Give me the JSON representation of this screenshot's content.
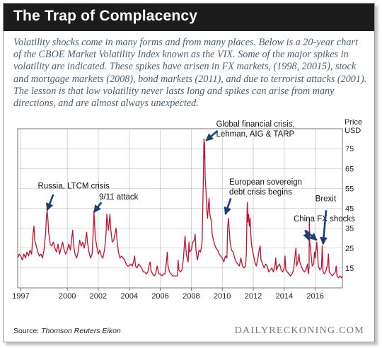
{
  "header": {
    "title": "The Trap of Complacency"
  },
  "intro": "Volatility shocks come in many forms and from many places. Below is a 20-year chart of the CBOE Market Volatility Index known as the VIX. Some of the major spikes in volatility are indicated. These spikes have arisen in FX markets, (1998, 20015), stock and mortgage markets (2008), bond markets (2011), and due to terrorist attacks (2001). The lesson is that low volatility never lasts long and spikes can arise from many directions, and are almost always unexpected.",
  "footer": {
    "source_label": "Source: ",
    "source_name": "Thomson Reuters Eikon",
    "brand": "DAILYRECKONING.COM"
  },
  "colors": {
    "line": "#c8102e",
    "arrow": "#1f3f73",
    "title_bg": "#1c1c1c"
  },
  "chart_data": {
    "type": "line",
    "ylabel_line1": "Price",
    "ylabel_line2": "USD",
    "ylim": [
      5,
      85
    ],
    "yticks": [
      15,
      25,
      35,
      45,
      55,
      65,
      75
    ],
    "xlim": [
      1996.8,
      2017.75
    ],
    "xticks": [
      {
        "x": 1997,
        "label": "1997"
      },
      {
        "x": 2000,
        "label": "2000"
      },
      {
        "x": 2002,
        "label": "2002"
      },
      {
        "x": 2004,
        "label": "2004"
      },
      {
        "x": 2006,
        "label": "2006"
      },
      {
        "x": 2008,
        "label": "2008"
      },
      {
        "x": 2010,
        "label": "2010"
      },
      {
        "x": 2012,
        "label": "2012"
      },
      {
        "x": 2014,
        "label": "2014"
      },
      {
        "x": 2016,
        "label": "2016"
      }
    ],
    "grid": true,
    "series": [
      {
        "values": [
          [
            1996.8,
            20
          ],
          [
            1996.9,
            22
          ],
          [
            1997.0,
            21
          ],
          [
            1997.1,
            19
          ],
          [
            1997.2,
            22
          ],
          [
            1997.3,
            20
          ],
          [
            1997.4,
            23
          ],
          [
            1997.5,
            21
          ],
          [
            1997.6,
            24
          ],
          [
            1997.7,
            22
          ],
          [
            1997.8,
            33
          ],
          [
            1997.85,
            36
          ],
          [
            1997.9,
            29
          ],
          [
            1998.0,
            26
          ],
          [
            1998.1,
            23
          ],
          [
            1998.2,
            21
          ],
          [
            1998.3,
            22
          ],
          [
            1998.4,
            20
          ],
          [
            1998.5,
            24
          ],
          [
            1998.6,
            32
          ],
          [
            1998.65,
            40
          ],
          [
            1998.7,
            44
          ],
          [
            1998.75,
            40
          ],
          [
            1998.8,
            33
          ],
          [
            1998.9,
            27
          ],
          [
            1999.0,
            26
          ],
          [
            1999.1,
            28
          ],
          [
            1999.2,
            25
          ],
          [
            1999.3,
            23
          ],
          [
            1999.4,
            27
          ],
          [
            1999.5,
            22
          ],
          [
            1999.6,
            25
          ],
          [
            1999.7,
            28
          ],
          [
            1999.8,
            24
          ],
          [
            1999.9,
            22
          ],
          [
            2000.0,
            24
          ],
          [
            2000.1,
            27
          ],
          [
            2000.2,
            24
          ],
          [
            2000.3,
            31
          ],
          [
            2000.35,
            34
          ],
          [
            2000.4,
            27
          ],
          [
            2000.5,
            22
          ],
          [
            2000.6,
            20
          ],
          [
            2000.7,
            23
          ],
          [
            2000.8,
            29
          ],
          [
            2000.9,
            26
          ],
          [
            2001.0,
            28
          ],
          [
            2001.1,
            25
          ],
          [
            2001.2,
            30
          ],
          [
            2001.25,
            33
          ],
          [
            2001.3,
            28
          ],
          [
            2001.4,
            23
          ],
          [
            2001.5,
            20
          ],
          [
            2001.6,
            22
          ],
          [
            2001.7,
            38
          ],
          [
            2001.72,
            43
          ],
          [
            2001.75,
            39
          ],
          [
            2001.8,
            31
          ],
          [
            2001.9,
            26
          ],
          [
            2002.0,
            22
          ],
          [
            2002.1,
            24
          ],
          [
            2002.2,
            21
          ],
          [
            2002.3,
            20
          ],
          [
            2002.4,
            24
          ],
          [
            2002.5,
            32
          ],
          [
            2002.55,
            42
          ],
          [
            2002.6,
            38
          ],
          [
            2002.65,
            34
          ],
          [
            2002.7,
            38
          ],
          [
            2002.75,
            42
          ],
          [
            2002.8,
            35
          ],
          [
            2002.9,
            28
          ],
          [
            2003.0,
            29
          ],
          [
            2003.1,
            33
          ],
          [
            2003.15,
            35
          ],
          [
            2003.2,
            30
          ],
          [
            2003.3,
            23
          ],
          [
            2003.4,
            20
          ],
          [
            2003.5,
            21
          ],
          [
            2003.6,
            20
          ],
          [
            2003.7,
            19
          ],
          [
            2003.8,
            17
          ],
          [
            2003.9,
            16
          ],
          [
            2004.0,
            16
          ],
          [
            2004.1,
            17
          ],
          [
            2004.2,
            16
          ],
          [
            2004.3,
            19
          ],
          [
            2004.35,
            21
          ],
          [
            2004.4,
            16
          ],
          [
            2004.5,
            15
          ],
          [
            2004.6,
            17
          ],
          [
            2004.7,
            16
          ],
          [
            2004.8,
            15
          ],
          [
            2004.9,
            13
          ],
          [
            2005.0,
            13
          ],
          [
            2005.1,
            12
          ],
          [
            2005.2,
            13
          ],
          [
            2005.3,
            17
          ],
          [
            2005.35,
            18
          ],
          [
            2005.4,
            14
          ],
          [
            2005.5,
            12
          ],
          [
            2005.6,
            11
          ],
          [
            2005.7,
            12
          ],
          [
            2005.8,
            16
          ],
          [
            2005.9,
            12
          ],
          [
            2006.0,
            12
          ],
          [
            2006.1,
            11
          ],
          [
            2006.2,
            12
          ],
          [
            2006.3,
            12
          ],
          [
            2006.4,
            18
          ],
          [
            2006.45,
            23
          ],
          [
            2006.5,
            16
          ],
          [
            2006.6,
            13
          ],
          [
            2006.7,
            12
          ],
          [
            2006.8,
            11
          ],
          [
            2006.9,
            11
          ],
          [
            2007.0,
            11
          ],
          [
            2007.1,
            11
          ],
          [
            2007.15,
            19
          ],
          [
            2007.2,
            14
          ],
          [
            2007.3,
            13
          ],
          [
            2007.4,
            14
          ],
          [
            2007.5,
            20
          ],
          [
            2007.55,
            26
          ],
          [
            2007.6,
            31
          ],
          [
            2007.65,
            25
          ],
          [
            2007.7,
            21
          ],
          [
            2007.8,
            18
          ],
          [
            2007.85,
            28
          ],
          [
            2007.9,
            23
          ],
          [
            2008.0,
            24
          ],
          [
            2008.1,
            28
          ],
          [
            2008.2,
            29
          ],
          [
            2008.25,
            32
          ],
          [
            2008.3,
            24
          ],
          [
            2008.4,
            19
          ],
          [
            2008.5,
            24
          ],
          [
            2008.6,
            23
          ],
          [
            2008.7,
            28
          ],
          [
            2008.72,
            38
          ],
          [
            2008.75,
            48
          ],
          [
            2008.78,
            60
          ],
          [
            2008.8,
            72
          ],
          [
            2008.82,
            80
          ],
          [
            2008.84,
            70
          ],
          [
            2008.86,
            78
          ],
          [
            2008.88,
            68
          ],
          [
            2008.9,
            60
          ],
          [
            2008.95,
            54
          ],
          [
            2009.0,
            44
          ],
          [
            2009.05,
            40
          ],
          [
            2009.1,
            46
          ],
          [
            2009.15,
            50
          ],
          [
            2009.2,
            42
          ],
          [
            2009.3,
            38
          ],
          [
            2009.35,
            32
          ],
          [
            2009.4,
            30
          ],
          [
            2009.5,
            27
          ],
          [
            2009.6,
            25
          ],
          [
            2009.7,
            24
          ],
          [
            2009.8,
            22
          ],
          [
            2009.9,
            21
          ],
          [
            2010.0,
            20
          ],
          [
            2010.1,
            18
          ],
          [
            2010.2,
            21
          ],
          [
            2010.3,
            20
          ],
          [
            2010.35,
            36
          ],
          [
            2010.4,
            40
          ],
          [
            2010.45,
            34
          ],
          [
            2010.5,
            28
          ],
          [
            2010.6,
            24
          ],
          [
            2010.7,
            23
          ],
          [
            2010.8,
            20
          ],
          [
            2010.9,
            18
          ],
          [
            2011.0,
            17
          ],
          [
            2011.1,
            16
          ],
          [
            2011.2,
            20
          ],
          [
            2011.3,
            16
          ],
          [
            2011.4,
            15
          ],
          [
            2011.5,
            16
          ],
          [
            2011.55,
            22
          ],
          [
            2011.6,
            44
          ],
          [
            2011.62,
            48
          ],
          [
            2011.65,
            38
          ],
          [
            2011.7,
            42
          ],
          [
            2011.75,
            36
          ],
          [
            2011.8,
            40
          ],
          [
            2011.85,
            31
          ],
          [
            2011.9,
            26
          ],
          [
            2012.0,
            22
          ],
          [
            2012.1,
            18
          ],
          [
            2012.2,
            16
          ],
          [
            2012.3,
            20
          ],
          [
            2012.4,
            25
          ],
          [
            2012.45,
            26
          ],
          [
            2012.5,
            19
          ],
          [
            2012.6,
            17
          ],
          [
            2012.7,
            15
          ],
          [
            2012.8,
            17
          ],
          [
            2012.9,
            16
          ],
          [
            2013.0,
            13
          ],
          [
            2013.1,
            14
          ],
          [
            2013.2,
            15
          ],
          [
            2013.3,
            13
          ],
          [
            2013.4,
            16
          ],
          [
            2013.45,
            20
          ],
          [
            2013.5,
            14
          ],
          [
            2013.6,
            16
          ],
          [
            2013.7,
            17
          ],
          [
            2013.8,
            14
          ],
          [
            2013.9,
            13
          ],
          [
            2014.0,
            15
          ],
          [
            2014.05,
            21
          ],
          [
            2014.1,
            14
          ],
          [
            2014.2,
            13
          ],
          [
            2014.3,
            12
          ],
          [
            2014.4,
            11
          ],
          [
            2014.5,
            12
          ],
          [
            2014.6,
            14
          ],
          [
            2014.75,
            25
          ],
          [
            2014.8,
            16
          ],
          [
            2014.9,
            19
          ],
          [
            2014.95,
            22
          ],
          [
            2015.0,
            18
          ],
          [
            2015.1,
            16
          ],
          [
            2015.2,
            14
          ],
          [
            2015.3,
            13
          ],
          [
            2015.4,
            14
          ],
          [
            2015.5,
            17
          ],
          [
            2015.55,
            12
          ],
          [
            2015.6,
            15
          ],
          [
            2015.62,
            40
          ],
          [
            2015.64,
            28
          ],
          [
            2015.7,
            24
          ],
          [
            2015.8,
            16
          ],
          [
            2015.9,
            17
          ],
          [
            2015.95,
            23
          ],
          [
            2016.0,
            20
          ],
          [
            2016.1,
            28
          ],
          [
            2016.15,
            22
          ],
          [
            2016.2,
            16
          ],
          [
            2016.3,
            14
          ],
          [
            2016.4,
            15
          ],
          [
            2016.45,
            26
          ],
          [
            2016.5,
            13
          ],
          [
            2016.6,
            12
          ],
          [
            2016.7,
            14
          ],
          [
            2016.8,
            17
          ],
          [
            2016.85,
            22
          ],
          [
            2016.9,
            13
          ],
          [
            2017.0,
            12
          ],
          [
            2017.1,
            11
          ],
          [
            2017.2,
            12
          ],
          [
            2017.3,
            13
          ],
          [
            2017.35,
            16
          ],
          [
            2017.4,
            11
          ],
          [
            2017.5,
            10
          ],
          [
            2017.6,
            11
          ],
          [
            2017.7,
            10
          ],
          [
            2017.75,
            11
          ]
        ]
      }
    ],
    "annotations": [
      {
        "id": "russia",
        "text_lines": [
          "Russia, LTCM crisis"
        ],
        "from": [
          1999.1,
          52
        ],
        "to": [
          1998.7,
          44
        ]
      },
      {
        "id": "sept11",
        "text_lines": [
          "9/11 attack"
        ],
        "from": [
          2002.2,
          48
        ],
        "to": [
          2001.72,
          43
        ]
      },
      {
        "id": "gfc",
        "text_lines": [
          "Global financial crisis,",
          "Lehman, AIG & TARP"
        ],
        "from": [
          2009.7,
          84
        ],
        "to": [
          2008.95,
          79
        ]
      },
      {
        "id": "euro",
        "text_lines": [
          "European sovereign",
          "debt crisis begins"
        ],
        "from": [
          2010.55,
          50
        ],
        "to": [
          2010.2,
          42
        ]
      },
      {
        "id": "china",
        "text_lines": [
          "China FX shocks"
        ],
        "from": [
          2015.35,
          34
        ],
        "to": [
          2015.6,
          29
        ]
      },
      {
        "id": "brexit",
        "text_lines": [
          "Brexit"
        ],
        "from": [
          2016.7,
          44
        ],
        "to": [
          2016.5,
          27
        ]
      }
    ],
    "china_second_arrow": {
      "from": [
        2015.35,
        34
      ],
      "to": [
        2016.1,
        29
      ]
    }
  }
}
